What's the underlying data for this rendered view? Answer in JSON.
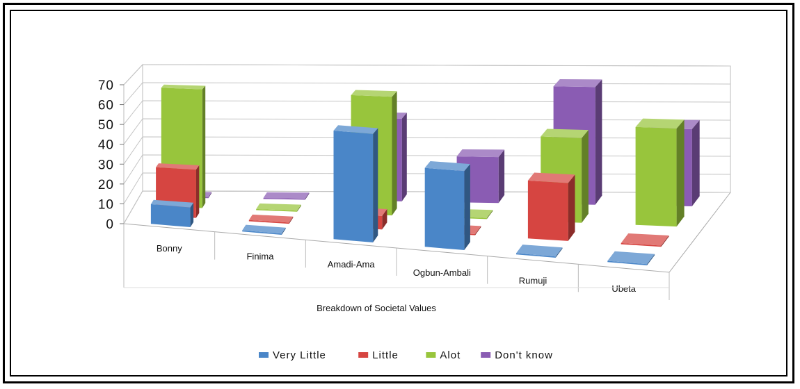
{
  "chart_data": {
    "type": "bar",
    "categories": [
      "Bonny",
      "Finima",
      "Amadi-Ama",
      "Ogbun-Ambali",
      "Rumuji",
      "Ubeta"
    ],
    "series": [
      {
        "name": "Very Little",
        "values": [
          10,
          0,
          55,
          40,
          0,
          0
        ]
      },
      {
        "name": "Little",
        "values": [
          25,
          0,
          7,
          0,
          30,
          0
        ]
      },
      {
        "name": "Alot",
        "values": [
          63,
          0,
          63,
          0,
          45,
          52
        ]
      },
      {
        "name": "Don't know",
        "values": [
          0,
          0,
          45,
          25,
          64,
          42
        ]
      }
    ],
    "colors": {
      "Very Little": "#4a86c8",
      "Little": "#d64541",
      "Alot": "#98c53c",
      "Don't know": "#8a5cb3"
    },
    "xlabel": "Breakdown of Societal Values",
    "ylabel": "",
    "yticks": [
      "70",
      "60",
      "50",
      "40",
      "30",
      "20",
      "10",
      "0"
    ],
    "ylim": [
      0,
      70
    ],
    "grid": true,
    "legend": "bottom",
    "style": "3d-column"
  }
}
